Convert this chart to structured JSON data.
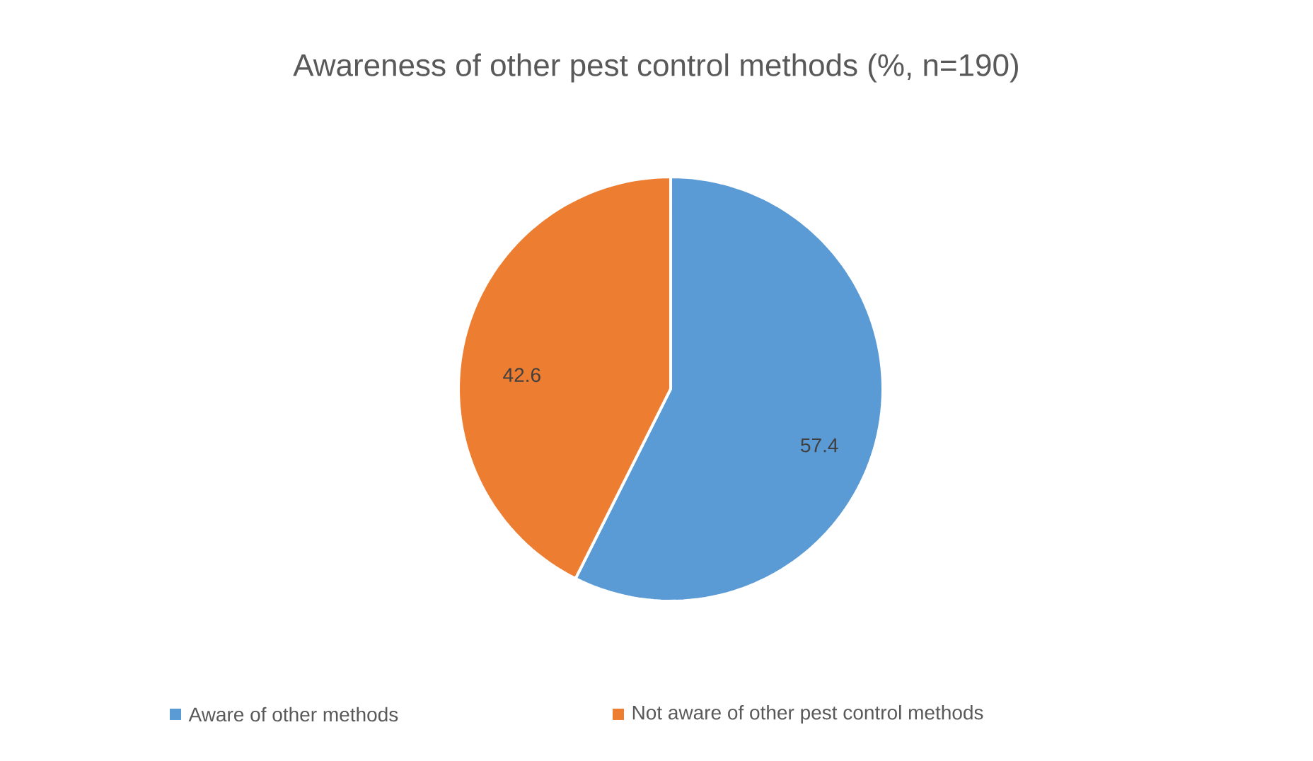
{
  "chart_data": {
    "type": "pie",
    "title": "Awareness of other pest control methods (%, n=190)",
    "categories": [
      "Aware of other methods",
      "Not aware of other pest control methods"
    ],
    "values": [
      57.4,
      42.6
    ],
    "colors": [
      "#5b9bd5",
      "#ed7d31"
    ],
    "data_labels": true,
    "legend": "bottom"
  }
}
